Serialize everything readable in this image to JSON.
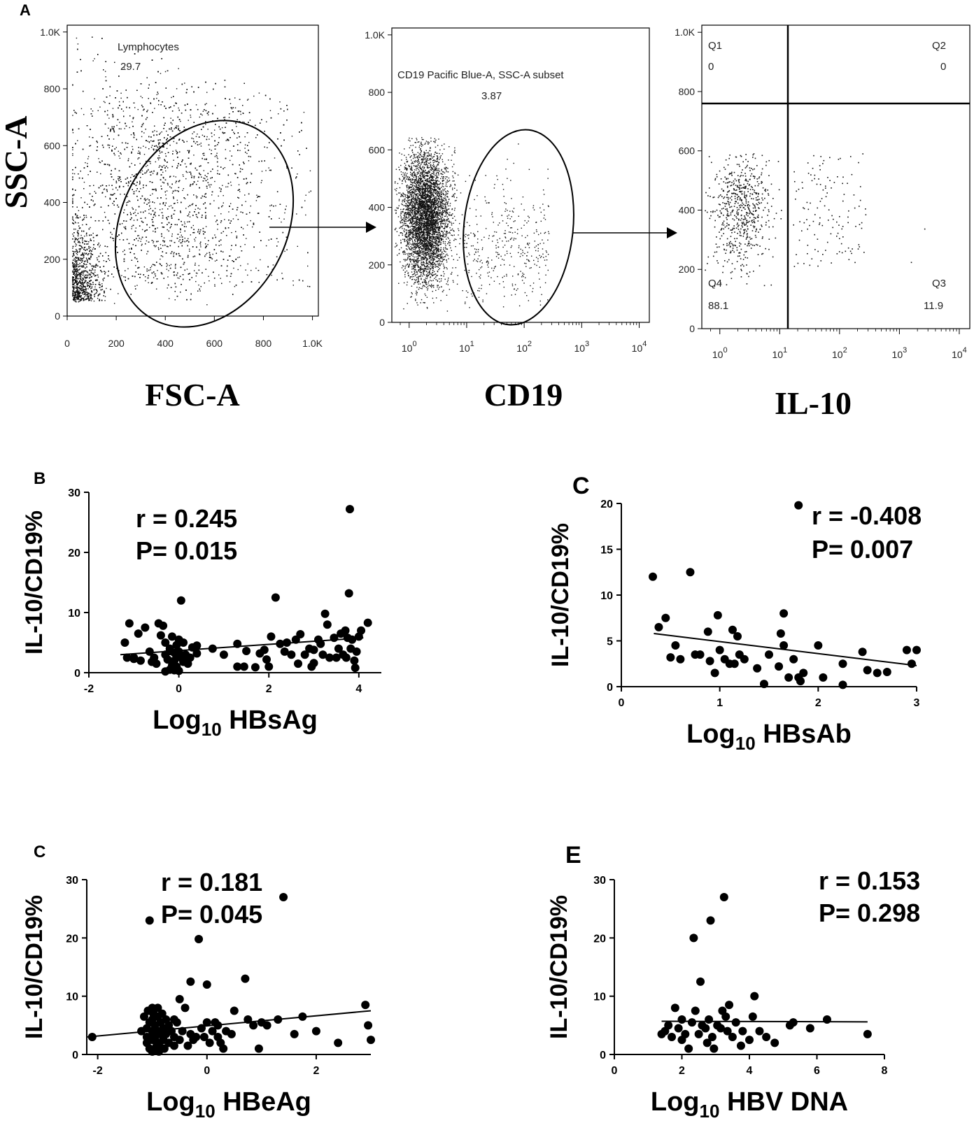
{
  "chart_data": [
    {
      "id": "A-fsc-ssc",
      "panel": "A",
      "type": "scatter",
      "title": "",
      "xlabel": "FSC-A",
      "ylabel": "SSC-A",
      "xlim": [
        0,
        1024
      ],
      "ylim": [
        0,
        1024
      ],
      "x_ticks": [
        "0",
        "200",
        "400",
        "600",
        "800",
        "1.0K"
      ],
      "y_ticks": [
        "0",
        "200",
        "400",
        "600",
        "800",
        "1.0K"
      ],
      "gate": {
        "name": "Lymphocytes",
        "value": "29.7"
      }
    },
    {
      "id": "A-cd19",
      "type": "scatter",
      "xlabel": "CD19",
      "xscale": "log",
      "xlim": [
        0.5,
        15000
      ],
      "ylim": [
        0,
        1024
      ],
      "x_ticks": [
        "10^0",
        "10^1",
        "10^2",
        "10^3",
        "10^4"
      ],
      "y_ticks": [
        "0",
        "200",
        "400",
        "600",
        "800",
        "1.0K"
      ],
      "gate": {
        "name": "CD19 Pacific Blue-A, SSC-A subset",
        "value": "3.87"
      }
    },
    {
      "id": "A-il10",
      "type": "scatter",
      "xlabel": "IL-10",
      "xscale": "log",
      "xlim": [
        0.5,
        15000
      ],
      "ylim": [
        0,
        1024
      ],
      "x_ticks": [
        "10^0",
        "10^1",
        "10^2",
        "10^3",
        "10^4"
      ],
      "y_ticks": [
        "0",
        "200",
        "400",
        "600",
        "800",
        "1.0K"
      ],
      "quadrant_split": {
        "x": 18,
        "y": 780
      },
      "quadrants": [
        {
          "name": "Q1",
          "value": "0"
        },
        {
          "name": "Q2",
          "value": "0"
        },
        {
          "name": "Q3",
          "value": "11.9"
        },
        {
          "name": "Q4",
          "value": "88.1"
        }
      ]
    },
    {
      "id": "B",
      "panel": "B",
      "type": "scatter",
      "xlabel": "Log10 HBsAg",
      "ylabel": "IL-10/CD19%",
      "xlim": [
        -2,
        4.5
      ],
      "ylim": [
        0,
        30
      ],
      "x_ticks": [
        -2,
        0,
        2,
        4
      ],
      "y_ticks": [
        0,
        10,
        20,
        30
      ],
      "stats": {
        "r": "r = 0.245",
        "p": "P= 0.015"
      },
      "fit": [
        [
          -1.3,
          3.0
        ],
        [
          4.1,
          5.8
        ]
      ],
      "points": [
        [
          -1.2,
          5
        ],
        [
          -1.15,
          2.5
        ],
        [
          -1.1,
          8.2
        ],
        [
          -1.0,
          2.3
        ],
        [
          -0.9,
          6.5
        ],
        [
          -0.85,
          2.0
        ],
        [
          -0.75,
          7.5
        ],
        [
          -0.65,
          3.5
        ],
        [
          -0.55,
          2.5
        ],
        [
          -0.5,
          1.5
        ],
        [
          -0.45,
          8.2
        ],
        [
          -0.4,
          6.2
        ],
        [
          -0.35,
          7.8
        ],
        [
          -0.3,
          3.0
        ],
        [
          -0.3,
          5.0
        ],
        [
          -0.25,
          2.2
        ],
        [
          -0.2,
          4.0
        ],
        [
          -0.2,
          0.5
        ],
        [
          -0.15,
          6.0
        ],
        [
          -0.1,
          3.3
        ],
        [
          -0.1,
          2.0
        ],
        [
          -0.05,
          4.6
        ],
        [
          -0.05,
          1.0
        ],
        [
          0,
          3.5
        ],
        [
          0,
          2.8
        ],
        [
          0,
          0.3
        ],
        [
          0.05,
          2.5
        ],
        [
          0.1,
          1.8
        ],
        [
          0.1,
          5.0
        ],
        [
          0.15,
          3.0
        ],
        [
          -0.3,
          0.2
        ],
        [
          -0.1,
          0.4
        ],
        [
          0.25,
          2.5
        ],
        [
          0.4,
          4.5
        ],
        [
          0.4,
          3.2
        ],
        [
          0.75,
          4.0
        ],
        [
          1.0,
          3.0
        ],
        [
          1.3,
          4.8
        ],
        [
          1.3,
          1.0
        ],
        [
          1.45,
          1.0
        ],
        [
          1.7,
          0.9
        ],
        [
          1.8,
          3.2
        ],
        [
          1.9,
          3.8
        ],
        [
          1.95,
          2.2
        ],
        [
          2.0,
          1.0
        ],
        [
          2.05,
          6.0
        ],
        [
          2.15,
          12.5
        ],
        [
          2.25,
          4.8
        ],
        [
          2.35,
          3.5
        ],
        [
          2.4,
          5.0
        ],
        [
          2.5,
          3.0
        ],
        [
          2.6,
          5.5
        ],
        [
          2.65,
          1.5
        ],
        [
          2.8,
          3.0
        ],
        [
          2.9,
          4.0
        ],
        [
          2.95,
          1.0
        ],
        [
          3.0,
          3.8
        ],
        [
          3.1,
          5.5
        ],
        [
          3.15,
          4.8
        ],
        [
          3.2,
          3.0
        ],
        [
          3.25,
          9.8
        ],
        [
          3.3,
          8.0
        ],
        [
          3.35,
          2.5
        ],
        [
          3.45,
          5.8
        ],
        [
          3.5,
          2.5
        ],
        [
          3.55,
          4.0
        ],
        [
          3.6,
          6.5
        ],
        [
          3.65,
          3.0
        ],
        [
          3.7,
          7.0
        ],
        [
          3.72,
          2.5
        ],
        [
          3.75,
          5.8
        ],
        [
          3.78,
          13.2
        ],
        [
          3.8,
          27.2
        ],
        [
          3.82,
          4.0
        ],
        [
          3.85,
          5.5
        ],
        [
          3.9,
          2.0
        ],
        [
          3.92,
          0.8
        ],
        [
          3.95,
          3.5
        ],
        [
          4.0,
          6.0
        ],
        [
          4.05,
          7.0
        ],
        [
          4.2,
          8.3
        ],
        [
          -1.0,
          2.5
        ],
        [
          -0.6,
          1.8
        ],
        [
          0.05,
          12.0
        ],
        [
          0.0,
          5.5
        ],
        [
          0.2,
          1.5
        ],
        [
          -0.05,
          3.3
        ],
        [
          0.3,
          4.2
        ],
        [
          1.5,
          3.6
        ],
        [
          2.7,
          6.4
        ],
        [
          3.0,
          1.6
        ],
        [
          -0.15,
          1.2
        ],
        [
          -0.2,
          3.6
        ]
      ]
    },
    {
      "id": "C-top",
      "panel": "C",
      "type": "scatter",
      "xlabel": "Log10 HBsAb",
      "ylabel": "IL-10/CD19%",
      "xlim": [
        0,
        3
      ],
      "ylim": [
        0,
        20
      ],
      "x_ticks": [
        0,
        1,
        2,
        3
      ],
      "y_ticks": [
        0,
        5,
        10,
        15,
        20
      ],
      "stats": {
        "r": "r = -0.408",
        "p": "P= 0.007"
      },
      "fit": [
        [
          0.33,
          5.8
        ],
        [
          3.0,
          2.3
        ]
      ],
      "points": [
        [
          0.32,
          12.0
        ],
        [
          0.38,
          6.5
        ],
        [
          0.45,
          7.5
        ],
        [
          0.5,
          3.2
        ],
        [
          0.55,
          4.5
        ],
        [
          0.6,
          3.0
        ],
        [
          0.7,
          12.5
        ],
        [
          0.75,
          3.5
        ],
        [
          0.8,
          3.5
        ],
        [
          0.88,
          6.0
        ],
        [
          0.9,
          2.8
        ],
        [
          0.95,
          1.5
        ],
        [
          0.98,
          7.8
        ],
        [
          1.0,
          4.0
        ],
        [
          1.05,
          3.0
        ],
        [
          1.1,
          2.5
        ],
        [
          1.13,
          6.2
        ],
        [
          1.15,
          2.5
        ],
        [
          1.18,
          5.5
        ],
        [
          1.2,
          3.5
        ],
        [
          1.25,
          3.0
        ],
        [
          1.38,
          2.0
        ],
        [
          1.45,
          0.3
        ],
        [
          1.5,
          3.5
        ],
        [
          1.6,
          2.2
        ],
        [
          1.62,
          5.8
        ],
        [
          1.65,
          4.5
        ],
        [
          1.65,
          8.0
        ],
        [
          1.7,
          1.0
        ],
        [
          1.75,
          3.0
        ],
        [
          1.8,
          1.0
        ],
        [
          1.82,
          0.6
        ],
        [
          1.8,
          19.8
        ],
        [
          1.85,
          1.5
        ],
        [
          2.0,
          4.5
        ],
        [
          2.05,
          1.0
        ],
        [
          2.25,
          2.5
        ],
        [
          2.25,
          0.2
        ],
        [
          2.45,
          3.8
        ],
        [
          2.5,
          1.8
        ],
        [
          2.6,
          1.5
        ],
        [
          2.7,
          1.6
        ],
        [
          2.9,
          4.0
        ],
        [
          2.95,
          2.5
        ],
        [
          3.0,
          4.0
        ]
      ]
    },
    {
      "id": "C-bottom",
      "panel": "C",
      "type": "scatter",
      "xlabel": "Log10 HBeAg",
      "ylabel": "IL-10/CD19%",
      "xlim": [
        -2.2,
        3
      ],
      "ylim": [
        0,
        30
      ],
      "x_ticks": [
        -2,
        0,
        2
      ],
      "y_ticks": [
        0,
        10,
        20,
        30
      ],
      "stats": {
        "r": "r = 0.181",
        "p": "P= 0.045"
      },
      "fit": [
        [
          -2.2,
          3.0
        ],
        [
          3.0,
          7.5
        ]
      ],
      "points": [
        [
          -2.1,
          3.0
        ],
        [
          -1.05,
          23.0
        ],
        [
          -1.1,
          4.5
        ],
        [
          -1.1,
          2.0
        ],
        [
          -1.08,
          7.5
        ],
        [
          -1.05,
          5.5
        ],
        [
          -1.05,
          3.0
        ],
        [
          -1.05,
          1.0
        ],
        [
          -1.0,
          8.0
        ],
        [
          -1.0,
          6.0
        ],
        [
          -1.0,
          4.0
        ],
        [
          -1.0,
          2.5
        ],
        [
          -1.0,
          0.5
        ],
        [
          -0.98,
          7.0
        ],
        [
          -0.95,
          5.0
        ],
        [
          -0.95,
          3.0
        ],
        [
          -0.92,
          1.5
        ],
        [
          -0.9,
          8.0
        ],
        [
          -0.9,
          6.5
        ],
        [
          -0.9,
          4.0
        ],
        [
          -0.9,
          2.0
        ],
        [
          -0.88,
          0.5
        ],
        [
          -0.85,
          5.5
        ],
        [
          -0.85,
          3.5
        ],
        [
          -0.82,
          7.0
        ],
        [
          -0.8,
          2.5
        ],
        [
          -0.8,
          4.5
        ],
        [
          -0.78,
          1.0
        ],
        [
          -0.75,
          6.0
        ],
        [
          -0.75,
          3.5
        ],
        [
          -0.7,
          2.0
        ],
        [
          -0.7,
          5.0
        ],
        [
          -0.65,
          4.0
        ],
        [
          -0.6,
          3.0
        ],
        [
          -0.6,
          1.5
        ],
        [
          -0.55,
          5.5
        ],
        [
          -0.5,
          2.5
        ],
        [
          -0.5,
          9.5
        ],
        [
          -0.45,
          4.0
        ],
        [
          -0.4,
          8.0
        ],
        [
          -0.35,
          1.5
        ],
        [
          -0.3,
          3.5
        ],
        [
          -0.3,
          12.5
        ],
        [
          -0.25,
          2.5
        ],
        [
          -0.2,
          3.0
        ],
        [
          -0.15,
          19.8
        ],
        [
          -0.1,
          4.5
        ],
        [
          -0.05,
          3.0
        ],
        [
          0,
          12.0
        ],
        [
          0,
          5.5
        ],
        [
          0.05,
          2.0
        ],
        [
          0.1,
          4.0
        ],
        [
          0.15,
          5.5
        ],
        [
          0.2,
          3.0
        ],
        [
          0.25,
          2.0
        ],
        [
          0.3,
          1.0
        ],
        [
          0.35,
          4.0
        ],
        [
          0.5,
          7.5
        ],
        [
          0.7,
          13.0
        ],
        [
          0.75,
          6.0
        ],
        [
          0.85,
          5.0
        ],
        [
          0.95,
          1.0
        ],
        [
          1.0,
          5.5
        ],
        [
          1.1,
          5.0
        ],
        [
          1.3,
          6.0
        ],
        [
          1.4,
          27.0
        ],
        [
          1.6,
          3.5
        ],
        [
          1.75,
          6.5
        ],
        [
          2.0,
          4.0
        ],
        [
          2.4,
          2.0
        ],
        [
          2.9,
          8.5
        ],
        [
          2.95,
          5.0
        ],
        [
          3.0,
          2.5
        ],
        [
          -1.2,
          4.0
        ],
        [
          -1.15,
          6.5
        ],
        [
          -1.1,
          3.0
        ],
        [
          -0.95,
          0.7
        ],
        [
          -0.85,
          1.2
        ],
        [
          -0.6,
          6.0
        ],
        [
          0.2,
          5.0
        ],
        [
          0.45,
          3.5
        ]
      ]
    },
    {
      "id": "E",
      "panel": "E",
      "type": "scatter",
      "xlabel": "Log10 HBV DNA",
      "ylabel": "IL-10/CD19%",
      "xlim": [
        0,
        8
      ],
      "ylim": [
        0,
        30
      ],
      "x_ticks": [
        0,
        2,
        4,
        6,
        8
      ],
      "y_ticks": [
        0,
        10,
        20,
        30
      ],
      "stats": {
        "r": "r = 0.153",
        "p": "P= 0.298"
      },
      "fit": [
        [
          1.4,
          5.7
        ],
        [
          7.5,
          5.6
        ]
      ],
      "points": [
        [
          1.4,
          3.5
        ],
        [
          1.5,
          4.0
        ],
        [
          1.6,
          5.0
        ],
        [
          1.7,
          3.0
        ],
        [
          1.8,
          8.0
        ],
        [
          1.9,
          4.5
        ],
        [
          2.0,
          2.5
        ],
        [
          2.0,
          6.0
        ],
        [
          2.1,
          3.5
        ],
        [
          2.2,
          1.0
        ],
        [
          2.3,
          5.5
        ],
        [
          2.35,
          20.0
        ],
        [
          2.4,
          7.5
        ],
        [
          2.5,
          3.5
        ],
        [
          2.55,
          12.5
        ],
        [
          2.6,
          5.0
        ],
        [
          2.7,
          4.5
        ],
        [
          2.75,
          2.0
        ],
        [
          2.8,
          6.0
        ],
        [
          2.85,
          23.0
        ],
        [
          2.9,
          3.0
        ],
        [
          2.95,
          1.0
        ],
        [
          3.05,
          5.0
        ],
        [
          3.15,
          4.5
        ],
        [
          3.2,
          7.5
        ],
        [
          3.25,
          27.0
        ],
        [
          3.3,
          6.5
        ],
        [
          3.35,
          4.0
        ],
        [
          3.4,
          8.5
        ],
        [
          3.5,
          3.0
        ],
        [
          3.6,
          5.5
        ],
        [
          3.75,
          1.5
        ],
        [
          3.8,
          4.0
        ],
        [
          4.0,
          2.5
        ],
        [
          4.1,
          6.5
        ],
        [
          4.15,
          10.0
        ],
        [
          4.3,
          4.0
        ],
        [
          4.5,
          3.0
        ],
        [
          4.75,
          2.0
        ],
        [
          5.2,
          5.0
        ],
        [
          5.3,
          5.5
        ],
        [
          5.8,
          4.5
        ],
        [
          6.3,
          6.0
        ],
        [
          7.5,
          3.5
        ]
      ]
    }
  ],
  "arrows": [
    "arrow-1",
    "arrow-2"
  ]
}
